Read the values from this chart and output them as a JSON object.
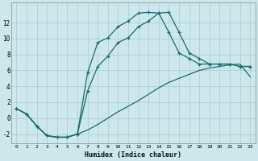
{
  "xlabel": "Humidex (Indice chaleur)",
  "bg_color": "#cce8ec",
  "grid_color": "#b0d0d4",
  "line_color": "#1a6b6b",
  "line1_x": [
    0,
    1,
    2,
    3,
    4,
    5,
    6,
    7,
    8,
    9,
    10,
    11,
    12,
    13,
    14,
    15,
    16,
    17,
    18,
    19,
    20,
    21,
    22,
    23
  ],
  "line1_y": [
    1.2,
    0.5,
    -1.0,
    -2.2,
    -2.4,
    -2.4,
    -2.0,
    -1.5,
    -0.8,
    0.0,
    0.8,
    1.5,
    2.2,
    3.0,
    3.8,
    4.5,
    5.0,
    5.5,
    6.0,
    6.3,
    6.5,
    6.7,
    6.8,
    5.2
  ],
  "line2_x": [
    0,
    1,
    2,
    3,
    4,
    5,
    6,
    7,
    8,
    9,
    10,
    11,
    12,
    13,
    14,
    15,
    16,
    17,
    18,
    19,
    20,
    21,
    22,
    23
  ],
  "line2_y": [
    1.2,
    0.5,
    -1.0,
    -2.2,
    -2.4,
    -2.4,
    -2.0,
    5.7,
    9.5,
    10.1,
    11.5,
    12.2,
    13.2,
    13.3,
    13.2,
    10.8,
    8.2,
    7.5,
    6.8,
    6.8,
    6.8,
    6.8,
    6.5,
    6.5
  ],
  "line3_x": [
    0,
    1,
    2,
    3,
    4,
    5,
    6,
    7,
    8,
    9,
    10,
    11,
    12,
    13,
    14,
    15,
    16,
    17,
    18,
    19,
    20,
    21,
    22,
    23
  ],
  "line3_y": [
    1.2,
    0.5,
    -1.0,
    -2.2,
    -2.4,
    -2.4,
    -2.0,
    3.4,
    6.5,
    7.8,
    9.5,
    10.1,
    11.5,
    12.2,
    13.2,
    13.3,
    10.8,
    8.2,
    7.5,
    6.8,
    6.8,
    6.8,
    6.5,
    6.5
  ],
  "ylim": [
    -3.2,
    14.5
  ],
  "xlim": [
    -0.5,
    23.5
  ],
  "yticks": [
    -2,
    0,
    2,
    4,
    6,
    8,
    10,
    12
  ],
  "xticks": [
    0,
    1,
    2,
    3,
    4,
    5,
    6,
    7,
    8,
    9,
    10,
    11,
    12,
    13,
    14,
    15,
    16,
    17,
    18,
    19,
    20,
    21,
    22,
    23
  ]
}
